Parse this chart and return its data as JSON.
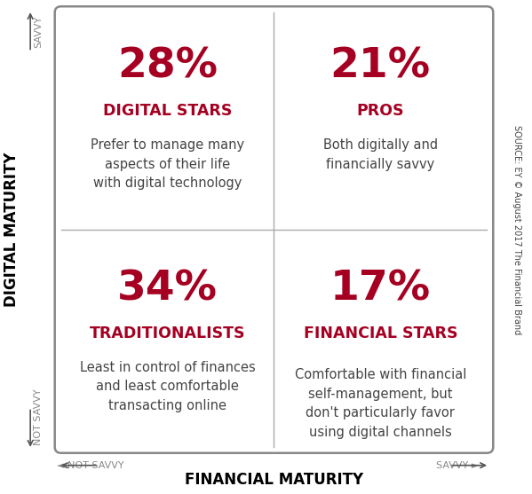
{
  "quadrants": [
    {
      "position": "top_left",
      "pct": "28%",
      "title": "DIGITAL STARS",
      "desc": "Prefer to manage many\naspects of their life\nwith digital technology"
    },
    {
      "position": "top_right",
      "pct": "21%",
      "title": "PROS",
      "desc": "Both digitally and\nfinancially savvy"
    },
    {
      "position": "bottom_left",
      "pct": "34%",
      "title": "TRADITIONALISTS",
      "desc": "Least in control of finances\nand least comfortable\ntransacting online"
    },
    {
      "position": "bottom_right",
      "pct": "17%",
      "title": "FINANCIAL STARS",
      "desc": "Comfortable with financial\nself-management, but\ndon't particularly favor\nusing digital channels"
    }
  ],
  "crimson": "#A50021",
  "dark_gray": "#444444",
  "light_gray": "#888888",
  "bg_color": "#FFFFFF",
  "border_color": "#888888",
  "divider_color": "#AAAAAA",
  "x_axis_label": "FINANCIAL MATURITY",
  "y_axis_label": "DIGITAL MATURITY",
  "x_left_label": "◄ NOT SAVVY",
  "x_right_label": "SAVVY ►",
  "y_bottom_label": "NOT SAVVY",
  "y_top_label": "SAVVY",
  "source_text": "SOURCE: EY © August 2017 The Financial Brand",
  "pct_fontsize": 34,
  "title_fontsize": 12.5,
  "desc_fontsize": 10.5,
  "axis_label_fontsize": 12,
  "savvy_label_fontsize": 8
}
